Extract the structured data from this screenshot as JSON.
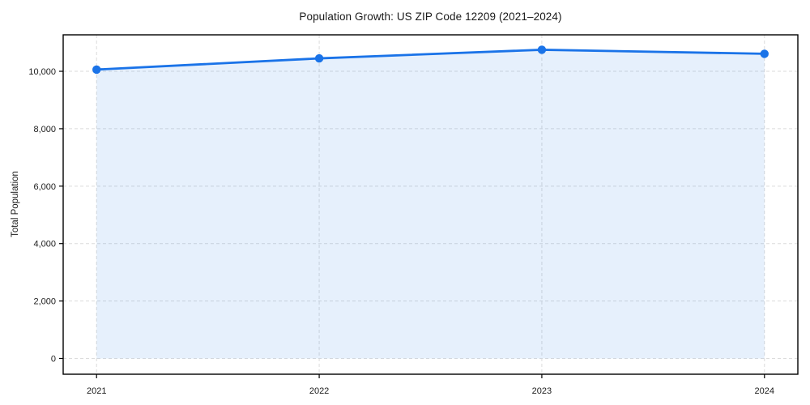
{
  "chart_data": {
    "type": "line",
    "title": "Population Growth: US ZIP Code 12209 (2021–2024)",
    "xlabel": "",
    "ylabel": "Total Population",
    "categories": [
      "2021",
      "2022",
      "2023",
      "2024"
    ],
    "x": [
      2021,
      2022,
      2023,
      2024
    ],
    "series": [
      {
        "name": "Total Population",
        "values": [
          10060,
          10450,
          10750,
          10610
        ]
      }
    ],
    "y_ticks": [
      0,
      2000,
      4000,
      6000,
      8000,
      10000
    ],
    "y_tick_labels": [
      "0",
      "2,000",
      "4,000",
      "6,000",
      "8,000",
      "10,000"
    ],
    "x_tick_labels": [
      "2021",
      "2022",
      "2023",
      "2024"
    ],
    "xlim": [
      2020.85,
      2024.15
    ],
    "ylim": [
      -550,
      11270
    ],
    "grid": true,
    "grid_style": "dashed",
    "legend": false,
    "area_fill_to_zero": true,
    "colors": {
      "line": "#1a73e8",
      "marker": "#1a73e8",
      "area_fill": "rgba(26,115,232,0.11)",
      "grid": "#dbdbdb",
      "spine": "#000000",
      "tick_text": "#1a1a1a",
      "background": "#ffffff"
    }
  }
}
